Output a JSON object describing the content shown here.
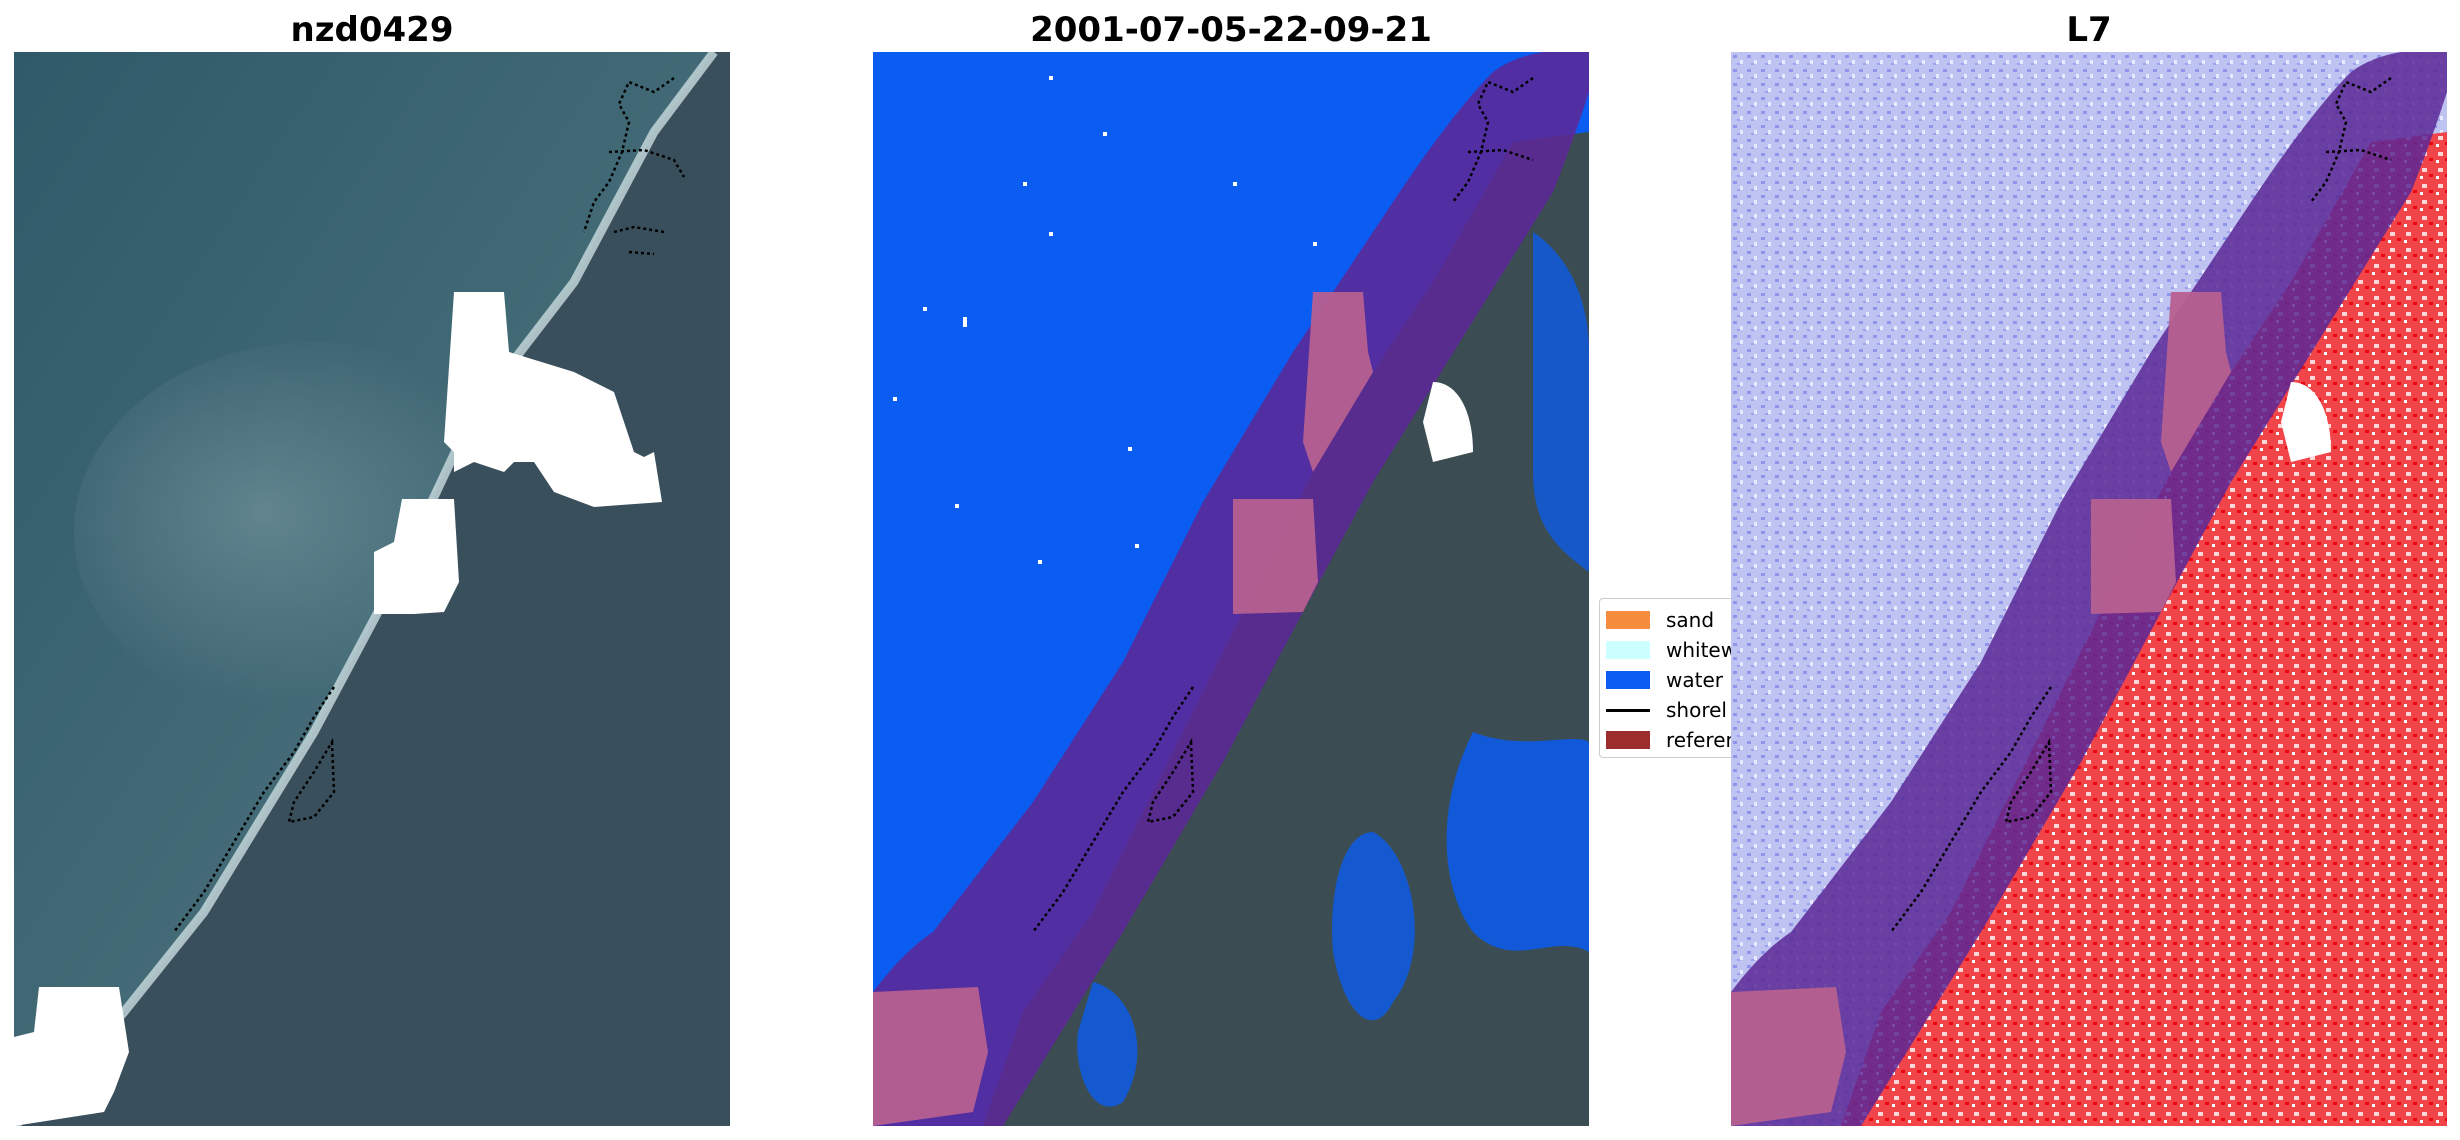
{
  "panels": [
    {
      "title": "nzd0429"
    },
    {
      "title": "2001-07-05-22-09-21"
    },
    {
      "title": "L7"
    }
  ],
  "legend": {
    "items": [
      {
        "label": "sand",
        "color": "#f68c3d"
      },
      {
        "label": "whitew",
        "color": "#ccffff"
      },
      {
        "label": "water",
        "color": "#0b5cf0"
      },
      {
        "label": "shorel",
        "color": "#000000"
      },
      {
        "label": "referen",
        "color": "#9b2d2d"
      }
    ]
  },
  "colors": {
    "ocean": "#3e6170",
    "land": "#3a4e5a",
    "cloud_mask": "#ffffff",
    "water_class": "#0b5cf0",
    "buffer": "#5b2896",
    "reference": "#b76090",
    "mndwi_water": "#b8bdf2",
    "mndwi_land": "#f21a20"
  }
}
